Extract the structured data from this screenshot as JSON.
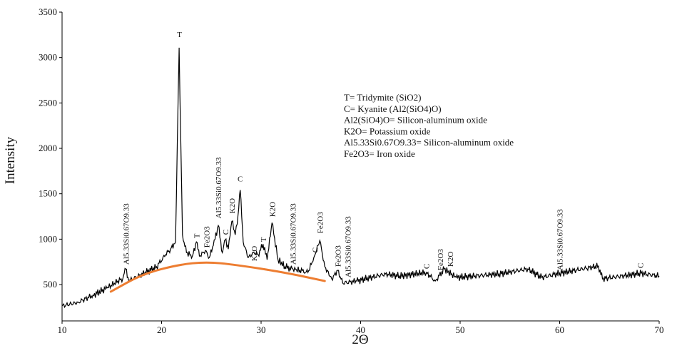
{
  "chart_data": {
    "type": "line",
    "xlabel": "2Θ",
    "ylabel": "Intensity",
    "xlim": [
      10,
      70
    ],
    "ylim": [
      100,
      3500
    ],
    "x_ticks": [
      10,
      20,
      30,
      40,
      50,
      60,
      70
    ],
    "y_ticks": [
      500,
      1000,
      1500,
      2000,
      2500,
      3000,
      3500
    ],
    "grid": false,
    "legend_position": "top-right",
    "legend": [
      "T= Tridymite (SiO2)",
      "C= Kyanite (Al2(SiO4)O)",
      "Al2(SiO4)O= Silicon-aluminum oxide",
      "K2O= Potassium oxide",
      "Al5.33Si0.67O9.33= Silicon-aluminum oxide",
      "Fe2O3= Iron oxide"
    ],
    "series": [
      {
        "color": "#000000",
        "x": [
          10,
          11.6,
          13.1,
          14.5,
          15.6,
          16.1,
          16.4,
          16.7,
          18.1,
          19.5,
          20.4,
          20.9,
          21.4,
          21.76,
          22.1,
          22.5,
          23.1,
          23.5,
          23.8,
          24.4,
          24.8,
          25.2,
          25.7,
          26.1,
          26.4,
          26.7,
          27.06,
          27.4,
          27.6,
          27.9,
          28.2,
          28.7,
          29.3,
          29.7,
          30.2,
          30.6,
          31.1,
          31.7,
          32.4,
          33.2,
          33.9,
          34.7,
          35.3,
          35.9,
          36.4,
          37.1,
          37.7,
          38.2,
          39.6,
          42.5,
          43.9,
          46.6,
          47.5,
          48.4,
          49.6,
          53.9,
          56.8,
          58.2,
          60.0,
          63.9,
          64.3,
          68.2,
          70
        ],
        "y": [
          265,
          304,
          383,
          461,
          539,
          563,
          672,
          539,
          617,
          696,
          829,
          891,
          970,
          3108,
          1048,
          852,
          813,
          970,
          813,
          876,
          797,
          930,
          1150,
          852,
          993,
          891,
          1197,
          1048,
          1166,
          1541,
          970,
          797,
          852,
          829,
          946,
          774,
          1181,
          774,
          696,
          672,
          657,
          633,
          797,
          985,
          696,
          563,
          657,
          516,
          539,
          617,
          594,
          633,
          539,
          672,
          578,
          617,
          672,
          578,
          625,
          704,
          563,
          625,
          594
        ]
      },
      {
        "color": "#ed7d31",
        "x": [
          14.9,
          18.1,
          21.7,
          24.5,
          27.4,
          32.4,
          36.4
        ],
        "y": [
          422,
          617,
          719,
          750,
          719,
          633,
          539
        ]
      }
    ],
    "annotations": [
      {
        "text": "Al5.33Si0.67O9.33",
        "x": 16.4,
        "y": 719,
        "rotated": true
      },
      {
        "text": "T",
        "x": 21.8,
        "y": 3225,
        "rotated": false
      },
      {
        "text": "T",
        "x": 23.5,
        "y": 1009,
        "rotated": true
      },
      {
        "text": "Fe2O3",
        "x": 24.4,
        "y": 907,
        "rotated": true
      },
      {
        "text": "Al5.33Si0.67O9.33",
        "x": 25.7,
        "y": 1228,
        "rotated": true
      },
      {
        "text": "C",
        "x": 26.4,
        "y": 1048,
        "rotated": true
      },
      {
        "text": "K2O",
        "x": 27.06,
        "y": 1283,
        "rotated": true
      },
      {
        "text": "C",
        "x": 27.9,
        "y": 1635,
        "rotated": false
      },
      {
        "text": "K2O",
        "x": 29.3,
        "y": 758,
        "rotated": true
      },
      {
        "text": "T",
        "x": 30.2,
        "y": 970,
        "rotated": true
      },
      {
        "text": "K2O",
        "x": 31.1,
        "y": 1244,
        "rotated": true
      },
      {
        "text": "Al5.33Si0.67O9.33",
        "x": 33.2,
        "y": 719,
        "rotated": true
      },
      {
        "text": "C",
        "x": 35.4,
        "y": 852,
        "rotated": true
      },
      {
        "text": "Fe2O3",
        "x": 35.9,
        "y": 1064,
        "rotated": true
      },
      {
        "text": "Fe2O3",
        "x": 37.7,
        "y": 696,
        "rotated": true
      },
      {
        "text": "Al5.33Si0.67O9.33",
        "x": 38.3,
        "y": 578,
        "rotated": true
      },
      {
        "text": "C",
        "x": 46.6,
        "y": 672,
        "rotated": true
      },
      {
        "text": "Fe2O3",
        "x": 48.0,
        "y": 657,
        "rotated": true
      },
      {
        "text": "K2O",
        "x": 48.5,
        "y": 696,
        "rotated": true
      },
      {
        "text": "Al5.33Si0.67O9.33",
        "x": 60.0,
        "y": 657,
        "rotated": true
      },
      {
        "text": "C",
        "x": 68.1,
        "y": 680,
        "rotated": true
      }
    ]
  }
}
